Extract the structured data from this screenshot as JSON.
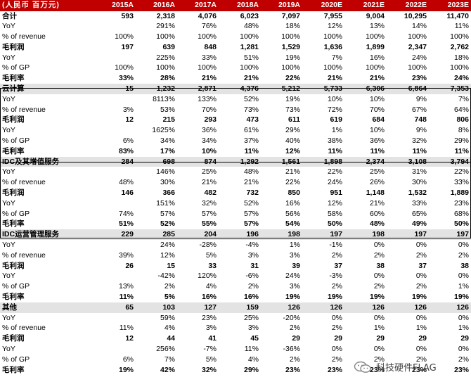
{
  "table": {
    "header": [
      "(人民币 百万元)",
      "2015A",
      "2016A",
      "2017A",
      "2018A",
      "2019A",
      "2020E",
      "2021E",
      "2022E",
      "2023E"
    ],
    "rows": [
      {
        "style": "bold",
        "cells": [
          "合计",
          "593",
          "2,318",
          "4,076",
          "6,023",
          "7,097",
          "7,955",
          "9,004",
          "10,295",
          "11,470"
        ]
      },
      {
        "style": "",
        "cells": [
          "YoY",
          "",
          "291%",
          "76%",
          "48%",
          "18%",
          "12%",
          "13%",
          "14%",
          "11%"
        ]
      },
      {
        "style": "",
        "cells": [
          "% of revenue",
          "100%",
          "100%",
          "100%",
          "100%",
          "100%",
          "100%",
          "100%",
          "100%",
          "100%"
        ]
      },
      {
        "style": "bold",
        "cells": [
          "毛利润",
          "197",
          "639",
          "848",
          "1,281",
          "1,529",
          "1,636",
          "1,899",
          "2,347",
          "2,762"
        ]
      },
      {
        "style": "",
        "cells": [
          "YoY",
          "",
          "225%",
          "33%",
          "51%",
          "19%",
          "7%",
          "16%",
          "24%",
          "18%"
        ]
      },
      {
        "style": "",
        "cells": [
          "% of GP",
          "100%",
          "100%",
          "100%",
          "100%",
          "100%",
          "100%",
          "100%",
          "100%",
          "100%"
        ]
      },
      {
        "style": "bold",
        "cells": [
          "毛利率",
          "33%",
          "28%",
          "21%",
          "21%",
          "22%",
          "21%",
          "21%",
          "23%",
          "24%"
        ]
      },
      {
        "style": "seg",
        "cells": [
          "云计算",
          "15",
          "1,232",
          "2,871",
          "4,376",
          "5,212",
          "5,733",
          "6,306",
          "6,864",
          "7,353"
        ]
      },
      {
        "style": "",
        "cells": [
          "YoY",
          "",
          "8113%",
          "133%",
          "52%",
          "19%",
          "10%",
          "10%",
          "9%",
          "7%"
        ]
      },
      {
        "style": "",
        "cells": [
          "% of revenue",
          "3%",
          "53%",
          "70%",
          "73%",
          "73%",
          "72%",
          "70%",
          "67%",
          "64%"
        ]
      },
      {
        "style": "bold",
        "cells": [
          "毛利润",
          "12",
          "215",
          "293",
          "473",
          "611",
          "619",
          "684",
          "748",
          "806"
        ]
      },
      {
        "style": "",
        "cells": [
          "YoY",
          "",
          "1625%",
          "36%",
          "61%",
          "29%",
          "1%",
          "10%",
          "9%",
          "8%"
        ]
      },
      {
        "style": "",
        "cells": [
          "% of GP",
          "6%",
          "34%",
          "34%",
          "37%",
          "40%",
          "38%",
          "36%",
          "32%",
          "29%"
        ]
      },
      {
        "style": "bold",
        "cells": [
          "毛利率",
          "83%",
          "17%",
          "10%",
          "11%",
          "12%",
          "11%",
          "11%",
          "11%",
          "11%"
        ]
      },
      {
        "style": "seg",
        "cells": [
          "IDC及其增值服务",
          "284",
          "698",
          "874",
          "1,292",
          "1,561",
          "1,898",
          "2,374",
          "3,108",
          "3,794"
        ]
      },
      {
        "style": "",
        "cells": [
          "YoY",
          "",
          "146%",
          "25%",
          "48%",
          "21%",
          "22%",
          "25%",
          "31%",
          "22%"
        ]
      },
      {
        "style": "",
        "cells": [
          "% of revenue",
          "48%",
          "30%",
          "21%",
          "21%",
          "22%",
          "24%",
          "26%",
          "30%",
          "33%"
        ]
      },
      {
        "style": "bold",
        "cells": [
          "毛利润",
          "146",
          "366",
          "482",
          "732",
          "850",
          "951",
          "1,148",
          "1,532",
          "1,889"
        ]
      },
      {
        "style": "",
        "cells": [
          "YoY",
          "",
          "151%",
          "32%",
          "52%",
          "16%",
          "12%",
          "21%",
          "33%",
          "23%"
        ]
      },
      {
        "style": "",
        "cells": [
          "% of GP",
          "74%",
          "57%",
          "57%",
          "57%",
          "56%",
          "58%",
          "60%",
          "65%",
          "68%"
        ]
      },
      {
        "style": "bold",
        "cells": [
          "毛利率",
          "51%",
          "52%",
          "55%",
          "57%",
          "54%",
          "50%",
          "48%",
          "49%",
          "50%"
        ]
      },
      {
        "style": "seg",
        "cells": [
          "IDC运营管理服务",
          "229",
          "285",
          "204",
          "196",
          "198",
          "197",
          "198",
          "197",
          "197"
        ]
      },
      {
        "style": "",
        "cells": [
          "YoY",
          "",
          "24%",
          "-28%",
          "-4%",
          "1%",
          "-1%",
          "0%",
          "0%",
          "0%"
        ]
      },
      {
        "style": "",
        "cells": [
          "% of revenue",
          "39%",
          "12%",
          "5%",
          "3%",
          "3%",
          "2%",
          "2%",
          "2%",
          "2%"
        ]
      },
      {
        "style": "bold",
        "cells": [
          "毛利润",
          "26",
          "15",
          "33",
          "31",
          "39",
          "37",
          "38",
          "37",
          "38"
        ]
      },
      {
        "style": "",
        "cells": [
          "YoY",
          "",
          "-42%",
          "120%",
          "-6%",
          "24%",
          "-3%",
          "0%",
          "0%",
          "0%"
        ]
      },
      {
        "style": "",
        "cells": [
          "% of GP",
          "13%",
          "2%",
          "4%",
          "2%",
          "3%",
          "2%",
          "2%",
          "2%",
          "1%"
        ]
      },
      {
        "style": "bold",
        "cells": [
          "毛利率",
          "11%",
          "5%",
          "16%",
          "16%",
          "19%",
          "19%",
          "19%",
          "19%",
          "19%"
        ]
      },
      {
        "style": "seg",
        "cells": [
          "其他",
          "65",
          "103",
          "127",
          "159",
          "126",
          "126",
          "126",
          "126",
          "126"
        ]
      },
      {
        "style": "",
        "cells": [
          "YoY",
          "",
          "59%",
          "23%",
          "25%",
          "-20%",
          "0%",
          "0%",
          "0%",
          "0%"
        ]
      },
      {
        "style": "",
        "cells": [
          "% of revenue",
          "11%",
          "4%",
          "3%",
          "3%",
          "2%",
          "2%",
          "1%",
          "1%",
          "1%"
        ]
      },
      {
        "style": "bold",
        "cells": [
          "毛利润",
          "12",
          "44",
          "41",
          "45",
          "29",
          "29",
          "29",
          "29",
          "29"
        ]
      },
      {
        "style": "",
        "cells": [
          "YoY",
          "",
          "256%",
          "-7%",
          "11%",
          "-36%",
          "0%",
          "0%",
          "0%",
          "0%"
        ]
      },
      {
        "style": "",
        "cells": [
          "% of GP",
          "6%",
          "7%",
          "5%",
          "4%",
          "2%",
          "2%",
          "2%",
          "2%",
          "2%"
        ]
      },
      {
        "style": "bold",
        "cells": [
          "毛利率",
          "19%",
          "42%",
          "32%",
          "29%",
          "23%",
          "23%",
          "23%",
          "23%",
          "23%"
        ]
      }
    ]
  },
  "watermark": {
    "text": "科技硬件FLAG",
    "icon": "wechat-icon"
  }
}
